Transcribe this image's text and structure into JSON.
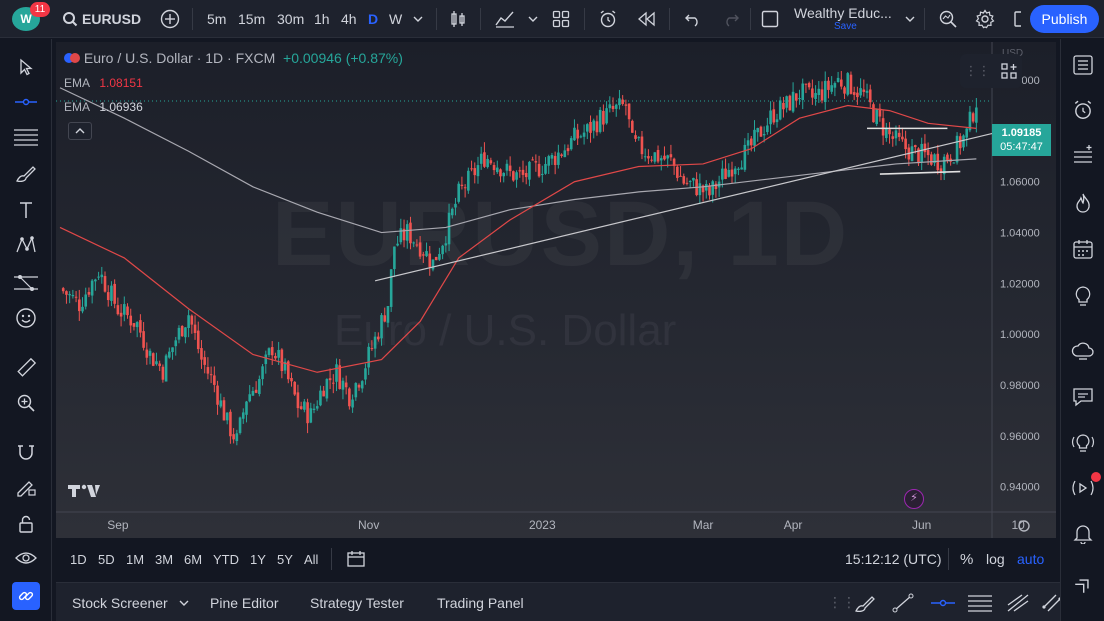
{
  "topbar": {
    "notification_count": "11",
    "symbol": "EURUSD",
    "intervals": [
      "5m",
      "15m",
      "30m",
      "1h",
      "4h",
      "D",
      "W"
    ],
    "active_interval": "D",
    "layout_name": "Wealthy Educ...",
    "layout_save": "Save",
    "publish_label": "Publish"
  },
  "legend": {
    "title": "Euro / U.S. Dollar · 1D · FXCM",
    "change": "+0.00946 (+0.87%)",
    "ema1_label": "EMA",
    "ema1_value": "1.08151",
    "ema2_label": "EMA",
    "ema2_value": "1.06936"
  },
  "watermark": {
    "symbol": "EURUSD, 1D",
    "name": "Euro / U.S. Dollar"
  },
  "price_axis": {
    "currency": "USD",
    "ticks": [
      "1.10000",
      "1.08000",
      "1.06000",
      "1.04000",
      "1.02000",
      "1.00000",
      "0.98000",
      "0.96000",
      "0.94000"
    ],
    "last_price": "1.09185",
    "countdown": "05:47:47"
  },
  "time_axis": {
    "ticks": [
      "Sep",
      "Nov",
      "2023",
      "Mar",
      "Apr",
      "Jun",
      "10"
    ]
  },
  "colors": {
    "up": "#26a69a",
    "down": "#ef5350",
    "ema_fast": "#e04848",
    "ema_slow": "#a8a8b0",
    "accent": "#2962ff"
  },
  "chart_data": {
    "type": "candlestick",
    "ylim": [
      0.93,
      1.115
    ],
    "close_path_points": [
      [
        0,
        1.018
      ],
      [
        6,
        1.012
      ],
      [
        12,
        1.025
      ],
      [
        18,
        1.01
      ],
      [
        24,
        1.004
      ],
      [
        28,
        0.992
      ],
      [
        32,
        0.986
      ],
      [
        36,
        0.998
      ],
      [
        40,
        1.008
      ],
      [
        44,
        0.99
      ],
      [
        48,
        0.98
      ],
      [
        52,
        0.965
      ],
      [
        55,
        0.958
      ],
      [
        58,
        0.975
      ],
      [
        62,
        0.982
      ],
      [
        66,
        0.995
      ],
      [
        70,
        0.985
      ],
      [
        74,
        0.972
      ],
      [
        78,
        0.968
      ],
      [
        82,
        0.98
      ],
      [
        86,
        0.985
      ],
      [
        90,
        0.976
      ],
      [
        94,
        0.985
      ],
      [
        98,
        0.998
      ],
      [
        102,
        1.012
      ],
      [
        104,
        1.035
      ],
      [
        108,
        1.04
      ],
      [
        112,
        1.035
      ],
      [
        116,
        1.028
      ],
      [
        120,
        1.04
      ],
      [
        124,
        1.055
      ],
      [
        128,
        1.062
      ],
      [
        132,
        1.07
      ],
      [
        136,
        1.067
      ],
      [
        140,
        1.063
      ],
      [
        144,
        1.062
      ],
      [
        148,
        1.065
      ],
      [
        152,
        1.068
      ],
      [
        156,
        1.072
      ],
      [
        160,
        1.077
      ],
      [
        164,
        1.08
      ],
      [
        168,
        1.085
      ],
      [
        172,
        1.088
      ],
      [
        176,
        1.09
      ],
      [
        178,
        1.075
      ],
      [
        182,
        1.072
      ],
      [
        186,
        1.07
      ],
      [
        190,
        1.068
      ],
      [
        194,
        1.06
      ],
      [
        198,
        1.058
      ],
      [
        202,
        1.055
      ],
      [
        206,
        1.062
      ],
      [
        210,
        1.068
      ],
      [
        214,
        1.072
      ],
      [
        218,
        1.08
      ],
      [
        222,
        1.087
      ],
      [
        226,
        1.09
      ],
      [
        230,
        1.095
      ],
      [
        234,
        1.093
      ],
      [
        238,
        1.096
      ],
      [
        242,
        1.1
      ],
      [
        246,
        1.098
      ],
      [
        250,
        1.094
      ],
      [
        254,
        1.085
      ],
      [
        258,
        1.078
      ],
      [
        262,
        1.074
      ],
      [
        266,
        1.071
      ],
      [
        270,
        1.07
      ],
      [
        274,
        1.068
      ],
      [
        278,
        1.072
      ],
      [
        282,
        1.079
      ],
      [
        285,
        1.092
      ]
    ],
    "ema_fast": [
      [
        0,
        1.042
      ],
      [
        20,
        1.03
      ],
      [
        40,
        1.01
      ],
      [
        60,
        0.992
      ],
      [
        80,
        0.985
      ],
      [
        100,
        0.99
      ],
      [
        112,
        1.005
      ],
      [
        124,
        1.03
      ],
      [
        140,
        1.045
      ],
      [
        160,
        1.06
      ],
      [
        180,
        1.066
      ],
      [
        200,
        1.067
      ],
      [
        215,
        1.073
      ],
      [
        230,
        1.085
      ],
      [
        245,
        1.09
      ],
      [
        258,
        1.088
      ],
      [
        270,
        1.083
      ],
      [
        285,
        1.081
      ]
    ],
    "ema_slow": [
      [
        0,
        1.097
      ],
      [
        20,
        1.085
      ],
      [
        40,
        1.072
      ],
      [
        60,
        1.058
      ],
      [
        80,
        1.048
      ],
      [
        100,
        1.04
      ],
      [
        120,
        1.042
      ],
      [
        140,
        1.049
      ],
      [
        160,
        1.053
      ],
      [
        180,
        1.056
      ],
      [
        200,
        1.058
      ],
      [
        220,
        1.061
      ],
      [
        240,
        1.064
      ],
      [
        260,
        1.067
      ],
      [
        285,
        1.069
      ]
    ],
    "trendline_rising": [
      [
        98,
        1.021
      ],
      [
        290,
        1.079
      ]
    ],
    "support_line": [
      [
        255,
        1.063
      ],
      [
        280,
        1.064
      ]
    ],
    "resistance_line": [
      [
        251,
        1.081
      ],
      [
        276,
        1.081
      ]
    ],
    "last_price_line": 1.0918
  },
  "rangebar": {
    "ranges": [
      "1D",
      "5D",
      "1M",
      "3M",
      "6M",
      "YTD",
      "1Y",
      "5Y",
      "All"
    ],
    "clock": "15:12:12 (UTC)",
    "percent": "%",
    "log": "log",
    "auto": "auto"
  },
  "bottompanel": {
    "tabs": [
      "Stock Screener",
      "Pine Editor",
      "Strategy Tester",
      "Trading Panel"
    ]
  }
}
